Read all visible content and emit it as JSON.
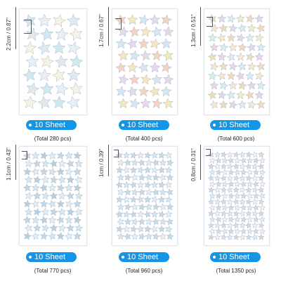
{
  "colors": {
    "badge": "#1595e6",
    "star_stroke": "#aeb9c4"
  },
  "panels": [
    {
      "size": "2.2cm / 0.87\"",
      "badge": "10 Sheet",
      "total": "(Total 280 pcs)",
      "star_colors": [
        "#cfe9f2",
        "#e6f0f6",
        "#f5f2e6",
        "#dfeaf0"
      ]
    },
    {
      "size": "1.7cm / 0.67\"",
      "badge": "10 Sheet",
      "total": "(Total 400 pcs)",
      "star_colors": [
        "#f3d3c3",
        "#f3e7bd",
        "#d8e6f3",
        "#e6d9ee"
      ]
    },
    {
      "size": "1.3cm / 0.51\"",
      "badge": "10 Sheet",
      "total": "(Total 600 pcs)",
      "star_colors": [
        "#f0dcbd",
        "#e4d7ec",
        "#d9ecf2",
        "#f3e9cf"
      ]
    },
    {
      "size": "1.1cm / 0.43\"",
      "badge": "10 Sheet",
      "total": "(Total 770 pcs)",
      "star_colors": [
        "#bfd8ea",
        "#d6e7f2",
        "#b6d0e3",
        "#e2eef5"
      ]
    },
    {
      "size": "1cm / 0.39\"",
      "badge": "10 Sheet",
      "total": "(Total 960 pcs)",
      "star_colors": [
        "#c2daea",
        "#d3e6f1",
        "#c9d8e5",
        "#e5eef4"
      ]
    },
    {
      "size": "0.8cm / 0.31\"",
      "badge": "10 Sheet",
      "total": "(Total 1350 pcs)",
      "star_colors": [
        "#d0dfea",
        "#e2ebf2",
        "#cfdae4",
        "#eef3f7"
      ]
    }
  ]
}
